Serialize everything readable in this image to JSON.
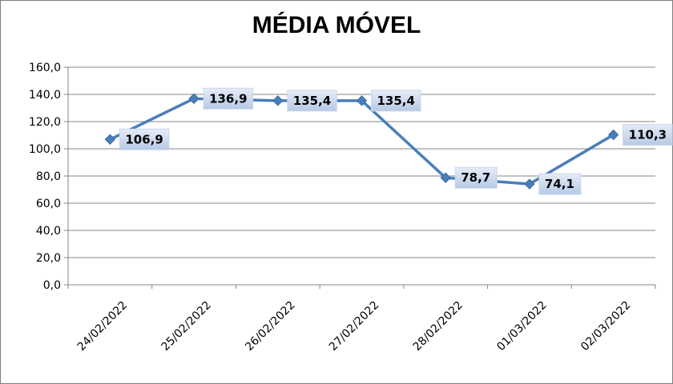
{
  "chart_data": {
    "type": "line",
    "title": "MÉDIA MÓVEL",
    "xlabel": "",
    "ylabel": "",
    "categories": [
      "24/02/2022",
      "25/02/2022",
      "26/02/2022",
      "27/02/2022",
      "28/02/2022",
      "01/03/2022",
      "02/03/2022"
    ],
    "series": [
      {
        "values": [
          106.9,
          136.9,
          135.4,
          135.4,
          78.7,
          74.1,
          110.3
        ],
        "labels": [
          "106,9",
          "136,9",
          "135,4",
          "135,4",
          "78,7",
          "74,1",
          "110,3"
        ]
      }
    ],
    "yticks": [
      "0,0",
      "20,0",
      "40,0",
      "60,0",
      "80,0",
      "100,0",
      "120,0",
      "140,0",
      "160,0"
    ],
    "ylim": [
      0,
      160
    ],
    "grid": true,
    "legend": "none",
    "colors": {
      "line": "#4a7ebb",
      "grid": "#868686",
      "label_box_top": "#e6ecf7",
      "label_box_bottom": "#b7c9e6"
    }
  }
}
